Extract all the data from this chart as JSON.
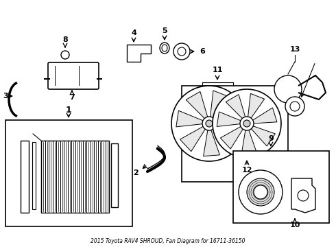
{
  "title": "2015 Toyota RAV4 SHROUD, Fan Diagram for 16711-36150",
  "background_color": "#ffffff",
  "line_color": "#000000",
  "label_color": "#000000",
  "fig_width": 4.9,
  "fig_height": 3.6,
  "dpi": 100
}
